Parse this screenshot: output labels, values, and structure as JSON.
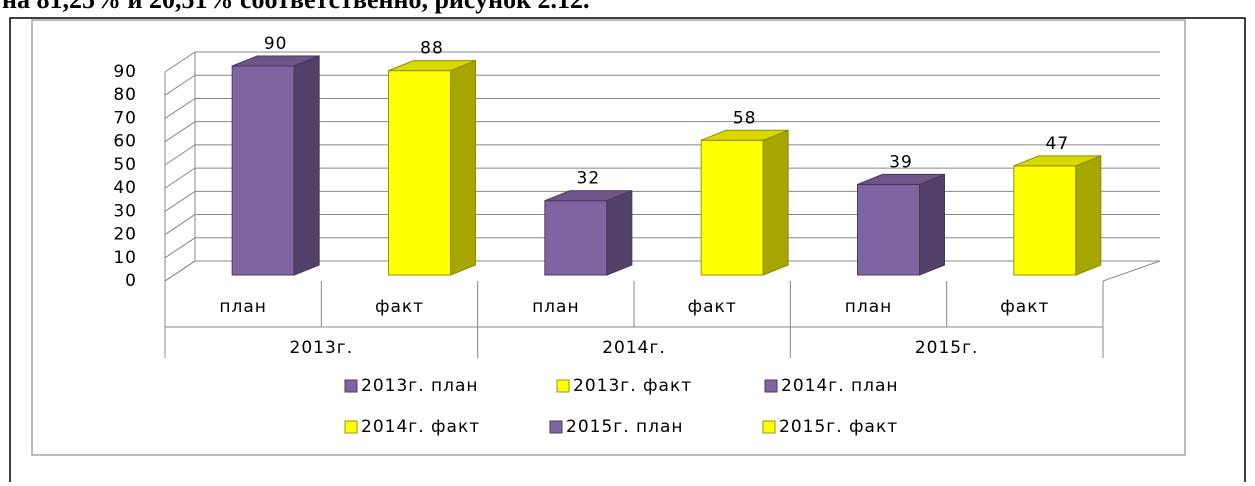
{
  "caption": "на 81,25% и 20,51% соответственно, рисунок 2.12.",
  "chart_data": {
    "type": "bar3d",
    "categories": [
      "план",
      "факт",
      "план",
      "факт",
      "план",
      "факт"
    ],
    "groups": [
      "2013г.",
      "2014г.",
      "2015г."
    ],
    "values": [
      90,
      88,
      32,
      58,
      39,
      47
    ],
    "colors": [
      "#8064a2",
      "#ffff00",
      "#8064a2",
      "#ffff00",
      "#8064a2",
      "#ffff00"
    ],
    "legend": [
      {
        "name": "2013г. план",
        "color": "#8064a2"
      },
      {
        "name": "2013г. факт",
        "color": "#ffff00"
      },
      {
        "name": "2014г. план",
        "color": "#8064a2"
      },
      {
        "name": "2014г. факт",
        "color": "#ffff00"
      },
      {
        "name": "2015г. план",
        "color": "#8064a2"
      },
      {
        "name": "2015г. факт",
        "color": "#ffff00"
      }
    ],
    "ylim": [
      0,
      90
    ],
    "yticks": [
      0,
      10,
      20,
      30,
      40,
      50,
      60,
      70,
      80,
      90
    ],
    "grid": true
  }
}
